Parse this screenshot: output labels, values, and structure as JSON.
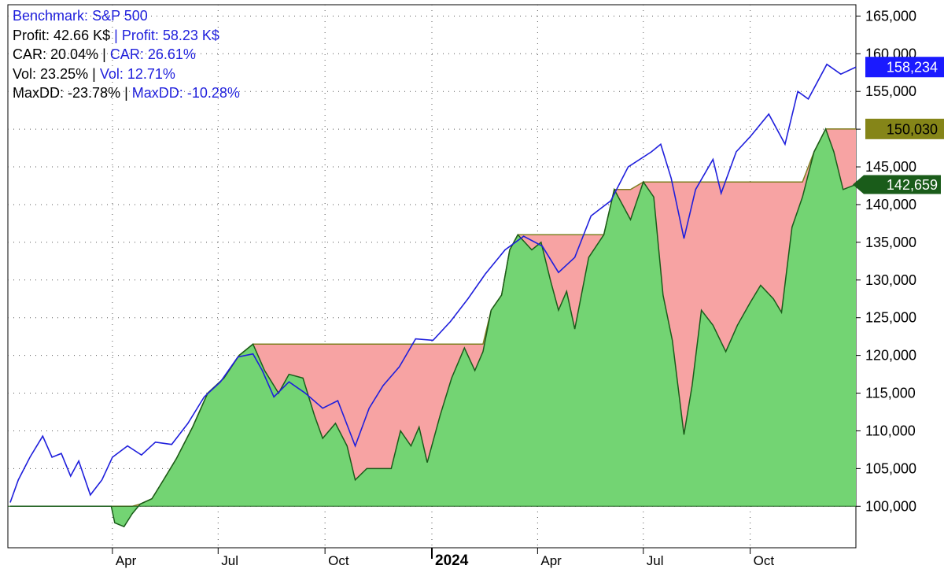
{
  "chart_data": {
    "type": "area",
    "legend": {
      "benchmark_label": "Benchmark:",
      "benchmark_name": "S&P 500",
      "rows": [
        {
          "key": "Profit:",
          "strategy": "42.66 K$",
          "benchmark": "58.23 K$"
        },
        {
          "key": "CAR:",
          "strategy": "20.04%",
          "benchmark": "26.61%"
        },
        {
          "key": "Vol:",
          "strategy": "23.25%",
          "benchmark": "12.71%"
        },
        {
          "key": "MaxDD:",
          "strategy": "-23.78%",
          "benchmark": "-10.28%"
        }
      ],
      "separator": "|"
    },
    "y_axis": {
      "ticks": [
        100000,
        105000,
        110000,
        115000,
        120000,
        125000,
        130000,
        135000,
        140000,
        145000,
        150000,
        155000,
        160000,
        165000
      ],
      "tick_labels": [
        "100,000",
        "105,000",
        "110,000",
        "115,000",
        "120,000",
        "125,000",
        "130,000",
        "135,000",
        "140,000",
        "145,000",
        "150,000",
        "155,000",
        "160,000",
        "165,000"
      ],
      "ylim": [
        94500,
        166500
      ],
      "position": "right",
      "grid": true
    },
    "x_axis": {
      "xlim": [
        "2023-01-01",
        "2024-12-31"
      ],
      "ticks": [
        {
          "date": "2023-04-01",
          "label": "Apr",
          "year": false
        },
        {
          "date": "2023-07-01",
          "label": "Jul",
          "year": false
        },
        {
          "date": "2023-10-01",
          "label": "Oct",
          "year": false
        },
        {
          "date": "2024-01-01",
          "label": "2024",
          "year": true
        },
        {
          "date": "2024-04-01",
          "label": "Apr",
          "year": false
        },
        {
          "date": "2024-07-01",
          "label": "Jul",
          "year": false
        },
        {
          "date": "2024-10-01",
          "label": "Oct",
          "year": false
        }
      ],
      "grid": true
    },
    "series": [
      {
        "name": "Benchmark",
        "role": "benchmark",
        "color": "#1f1fdc",
        "points": [
          [
            "2023-01-03",
            100500
          ],
          [
            "2023-01-10",
            103500
          ],
          [
            "2023-01-20",
            106500
          ],
          [
            "2023-01-31",
            109300
          ],
          [
            "2023-02-08",
            106500
          ],
          [
            "2023-02-16",
            107000
          ],
          [
            "2023-02-24",
            104000
          ],
          [
            "2023-03-03",
            106000
          ],
          [
            "2023-03-13",
            101500
          ],
          [
            "2023-03-23",
            103500
          ],
          [
            "2023-04-01",
            106500
          ],
          [
            "2023-04-14",
            108000
          ],
          [
            "2023-04-26",
            106800
          ],
          [
            "2023-05-08",
            108500
          ],
          [
            "2023-05-22",
            108200
          ],
          [
            "2023-06-05",
            111000
          ],
          [
            "2023-06-19",
            114500
          ],
          [
            "2023-07-03",
            116500
          ],
          [
            "2023-07-18",
            119800
          ],
          [
            "2023-07-31",
            120200
          ],
          [
            "2023-08-08",
            118000
          ],
          [
            "2023-08-18",
            114500
          ],
          [
            "2023-08-31",
            116500
          ],
          [
            "2023-09-14",
            115000
          ],
          [
            "2023-09-29",
            113000
          ],
          [
            "2023-10-12",
            114000
          ],
          [
            "2023-10-27",
            108000
          ],
          [
            "2023-11-08",
            113000
          ],
          [
            "2023-11-20",
            116000
          ],
          [
            "2023-12-04",
            118500
          ],
          [
            "2023-12-18",
            122200
          ],
          [
            "2024-01-02",
            122000
          ],
          [
            "2024-01-17",
            124500
          ],
          [
            "2024-02-01",
            127500
          ],
          [
            "2024-02-16",
            130800
          ],
          [
            "2024-03-04",
            134000
          ],
          [
            "2024-03-20",
            135800
          ],
          [
            "2024-04-05",
            134500
          ],
          [
            "2024-04-19",
            131000
          ],
          [
            "2024-05-03",
            133000
          ],
          [
            "2024-05-17",
            138500
          ],
          [
            "2024-06-03",
            140500
          ],
          [
            "2024-06-18",
            145000
          ],
          [
            "2024-07-08",
            147000
          ],
          [
            "2024-07-16",
            148000
          ],
          [
            "2024-07-25",
            143500
          ],
          [
            "2024-08-05",
            135500
          ],
          [
            "2024-08-15",
            142000
          ],
          [
            "2024-08-30",
            146000
          ],
          [
            "2024-09-06",
            141500
          ],
          [
            "2024-09-19",
            147000
          ],
          [
            "2024-10-01",
            149000
          ],
          [
            "2024-10-17",
            152000
          ],
          [
            "2024-10-31",
            148000
          ],
          [
            "2024-11-11",
            155000
          ],
          [
            "2024-11-20",
            154000
          ],
          [
            "2024-12-06",
            158600
          ],
          [
            "2024-12-18",
            157300
          ],
          [
            "2024-12-31",
            158234
          ]
        ],
        "last_value_label": "158,234",
        "badge_color": "#1a1aff"
      },
      {
        "name": "Equity",
        "role": "strategy_equity",
        "fill": "#73d473",
        "line": "#1a5c1a",
        "points": [
          [
            "2023-01-03",
            100000
          ],
          [
            "2023-03-31",
            100000
          ],
          [
            "2023-04-03",
            97800
          ],
          [
            "2023-04-11",
            97300
          ],
          [
            "2023-04-18",
            99000
          ],
          [
            "2023-04-25",
            100300
          ],
          [
            "2023-05-05",
            101000
          ],
          [
            "2023-05-15",
            103500
          ],
          [
            "2023-05-26",
            106300
          ],
          [
            "2023-06-09",
            110500
          ],
          [
            "2023-06-22",
            115000
          ],
          [
            "2023-07-06",
            117000
          ],
          [
            "2023-07-19",
            120000
          ],
          [
            "2023-07-31",
            121500
          ],
          [
            "2023-08-10",
            118000
          ],
          [
            "2023-08-22",
            115000
          ],
          [
            "2023-08-31",
            117500
          ],
          [
            "2023-09-12",
            117000
          ],
          [
            "2023-09-22",
            112000
          ],
          [
            "2023-09-29",
            109000
          ],
          [
            "2023-10-10",
            111000
          ],
          [
            "2023-10-20",
            108000
          ],
          [
            "2023-10-27",
            103500
          ],
          [
            "2023-11-06",
            105000
          ],
          [
            "2023-11-27",
            105000
          ],
          [
            "2023-12-05",
            110000
          ],
          [
            "2023-12-14",
            108000
          ],
          [
            "2023-12-21",
            110500
          ],
          [
            "2023-12-28",
            105800
          ],
          [
            "2024-01-08",
            112000
          ],
          [
            "2024-01-18",
            117000
          ],
          [
            "2024-01-29",
            121000
          ],
          [
            "2024-02-07",
            118000
          ],
          [
            "2024-02-14",
            120500
          ],
          [
            "2024-02-21",
            126000
          ],
          [
            "2024-03-01",
            128000
          ],
          [
            "2024-03-08",
            134000
          ],
          [
            "2024-03-15",
            136000
          ],
          [
            "2024-03-27",
            134000
          ],
          [
            "2024-04-04",
            135000
          ],
          [
            "2024-04-12",
            130000
          ],
          [
            "2024-04-19",
            126000
          ],
          [
            "2024-04-26",
            128500
          ],
          [
            "2024-05-03",
            123500
          ],
          [
            "2024-05-15",
            133000
          ],
          [
            "2024-05-28",
            136000
          ],
          [
            "2024-06-06",
            142000
          ],
          [
            "2024-06-20",
            138000
          ],
          [
            "2024-07-01",
            143000
          ],
          [
            "2024-07-10",
            141000
          ],
          [
            "2024-07-18",
            128000
          ],
          [
            "2024-07-26",
            122000
          ],
          [
            "2024-08-05",
            109500
          ],
          [
            "2024-08-12",
            116000
          ],
          [
            "2024-08-20",
            126000
          ],
          [
            "2024-08-30",
            124000
          ],
          [
            "2024-09-10",
            120500
          ],
          [
            "2024-09-20",
            124000
          ],
          [
            "2024-10-01",
            127000
          ],
          [
            "2024-10-10",
            129300
          ],
          [
            "2024-10-21",
            127500
          ],
          [
            "2024-10-28",
            125700
          ],
          [
            "2024-11-06",
            137000
          ],
          [
            "2024-11-15",
            141000
          ],
          [
            "2024-11-25",
            147000
          ],
          [
            "2024-12-05",
            150030
          ],
          [
            "2024-12-12",
            147000
          ],
          [
            "2024-12-20",
            142000
          ],
          [
            "2024-12-31",
            142659
          ]
        ],
        "last_value_label": "142,659",
        "badge_color": "#1a5c1a"
      },
      {
        "name": "Peak Equity",
        "role": "strategy_peak",
        "fill": "#f7a3a3",
        "line": "#7f7f20",
        "last_value_label": "150,030",
        "badge_color": "#858518"
      }
    ],
    "baseline": 100000
  }
}
